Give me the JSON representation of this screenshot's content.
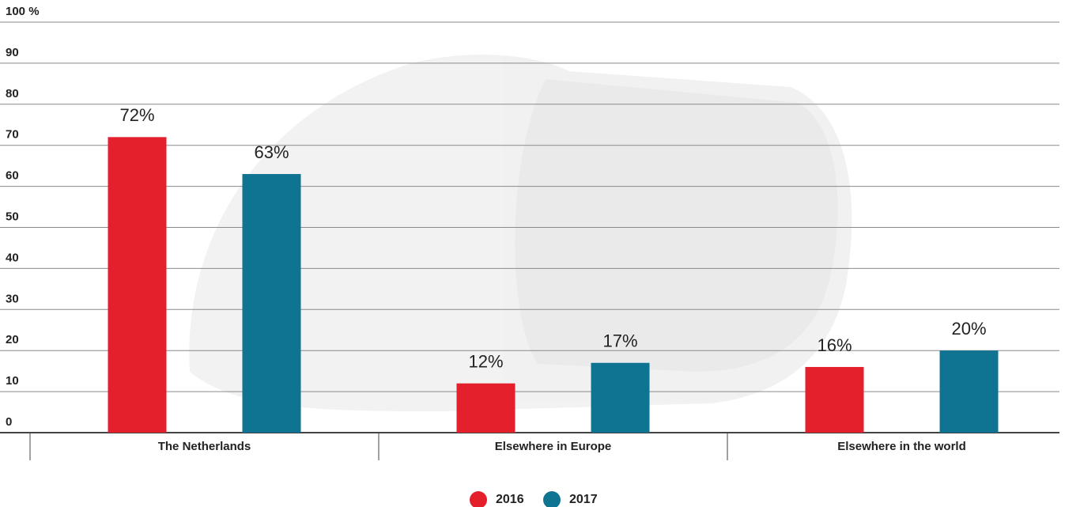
{
  "chart_data": {
    "type": "bar",
    "categories": [
      "The Netherlands",
      "Elsewhere in Europe",
      "Elsewhere in the world"
    ],
    "series": [
      {
        "name": "2016",
        "color": "#e3202c",
        "values": [
          72,
          12,
          16
        ],
        "value_labels": [
          "72%",
          "12%",
          "16%"
        ]
      },
      {
        "name": "2017",
        "color": "#0f7392",
        "values": [
          63,
          17,
          20
        ],
        "value_labels": [
          "63%",
          "17%",
          "20%"
        ]
      }
    ],
    "ylim": [
      0,
      100
    ],
    "yticks": [
      0,
      10,
      20,
      30,
      40,
      50,
      60,
      70,
      80,
      90,
      {
        "value": 100,
        "label": "100 %"
      }
    ],
    "grid": true,
    "legend": "bottom"
  }
}
